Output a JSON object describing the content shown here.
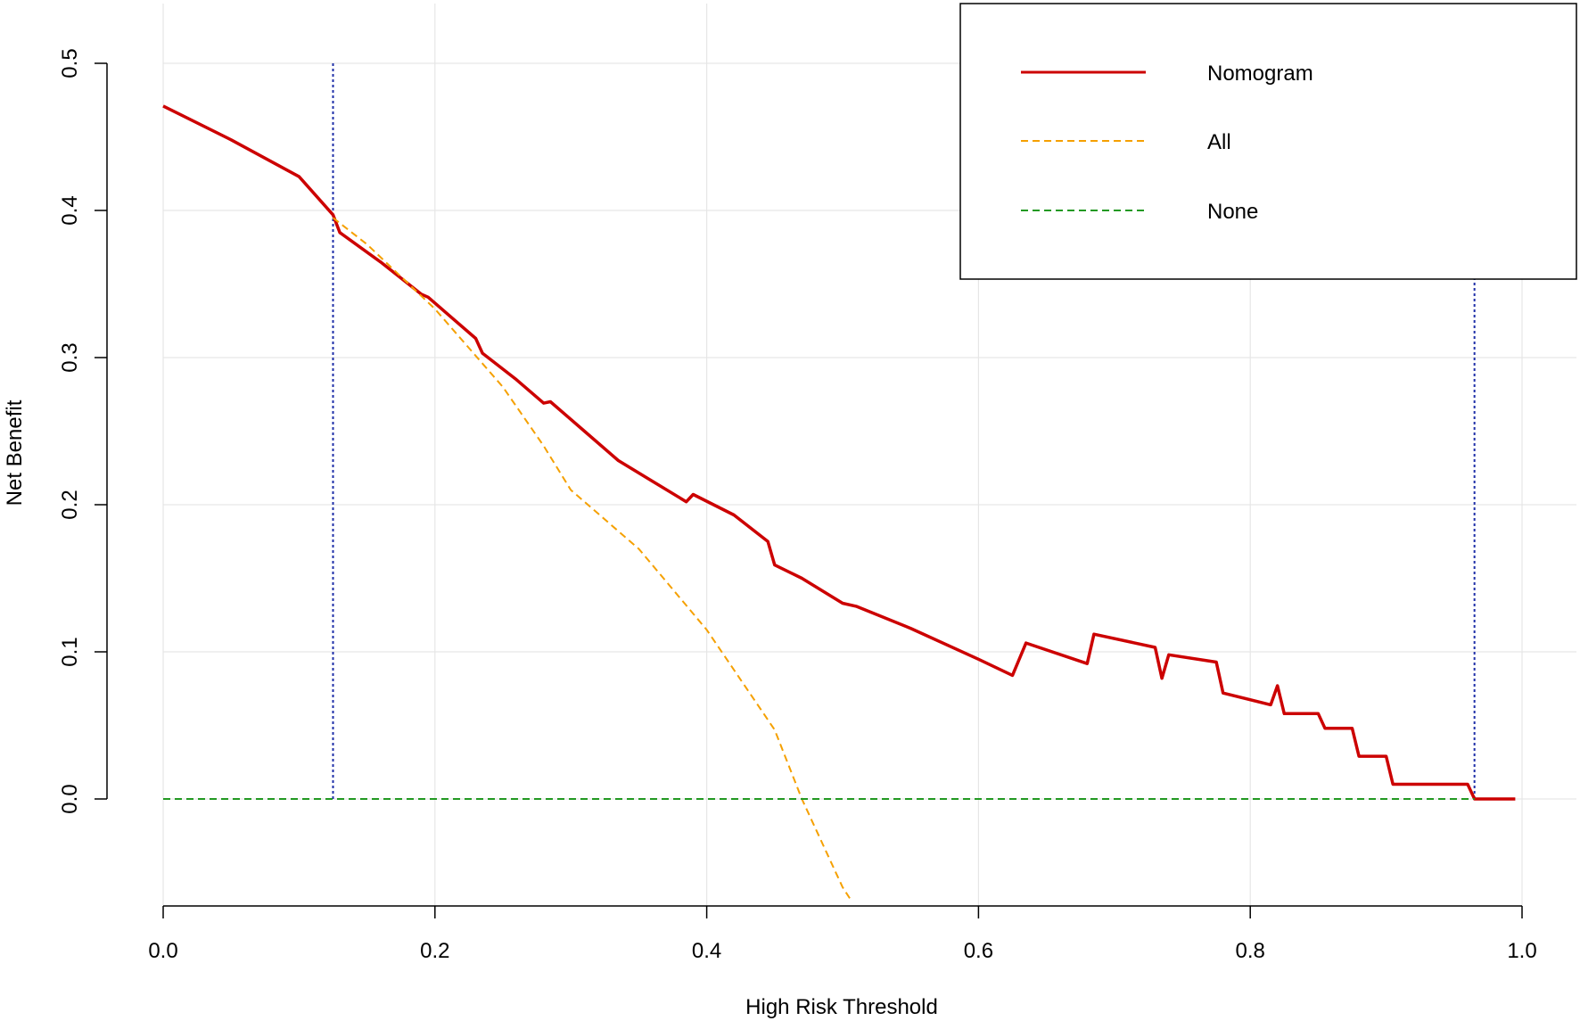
{
  "chart_data": {
    "type": "line",
    "xlabel": "High Risk Threshold",
    "ylabel": "Net Benefit",
    "xlim": [
      0,
      1
    ],
    "ylim": [
      -0.07,
      0.5
    ],
    "x_ticks": [
      "0.0",
      "0.2",
      "0.4",
      "0.6",
      "0.8",
      "1.0"
    ],
    "y_ticks": [
      "0.0",
      "0.1",
      "0.2",
      "0.3",
      "0.4",
      "0.5"
    ],
    "grid": true,
    "legend_position": "top-right",
    "reference_lines_x": [
      0.125,
      0.965
    ],
    "series": [
      {
        "name": "Nomogram",
        "color": "#cc0000",
        "style": "solid",
        "x": [
          0.0,
          0.05,
          0.1,
          0.125,
          0.13,
          0.16,
          0.19,
          0.195,
          0.23,
          0.235,
          0.26,
          0.28,
          0.285,
          0.31,
          0.335,
          0.36,
          0.385,
          0.39,
          0.42,
          0.445,
          0.45,
          0.47,
          0.5,
          0.51,
          0.55,
          0.6,
          0.625,
          0.635,
          0.68,
          0.685,
          0.73,
          0.735,
          0.74,
          0.775,
          0.78,
          0.815,
          0.82,
          0.825,
          0.85,
          0.855,
          0.875,
          0.88,
          0.9,
          0.905,
          0.96,
          0.965,
          0.995
        ],
        "y": [
          0.471,
          0.448,
          0.423,
          0.397,
          0.385,
          0.365,
          0.343,
          0.341,
          0.313,
          0.303,
          0.285,
          0.269,
          0.27,
          0.25,
          0.23,
          0.216,
          0.202,
          0.207,
          0.193,
          0.175,
          0.159,
          0.15,
          0.133,
          0.131,
          0.116,
          0.095,
          0.084,
          0.106,
          0.092,
          0.112,
          0.103,
          0.082,
          0.098,
          0.093,
          0.072,
          0.064,
          0.077,
          0.058,
          0.058,
          0.048,
          0.048,
          0.029,
          0.029,
          0.01,
          0.01,
          0.0,
          0.0
        ]
      },
      {
        "name": "All",
        "color": "#f5a000",
        "style": "dashed",
        "x": [
          0.125,
          0.15,
          0.2,
          0.25,
          0.28,
          0.3,
          0.35,
          0.4,
          0.45,
          0.47,
          0.5,
          0.507
        ],
        "y": [
          0.395,
          0.377,
          0.333,
          0.28,
          0.24,
          0.21,
          0.17,
          0.115,
          0.047,
          0.0,
          -0.06,
          -0.07
        ]
      },
      {
        "name": "None",
        "color": "#229922",
        "style": "dashed",
        "x": [
          0.0,
          0.965
        ],
        "y": [
          0.0,
          0.0
        ]
      }
    ]
  },
  "colors": {
    "reference_line": "#1f2fa8",
    "grid": "#e6e6e6",
    "axis": "#000000"
  }
}
